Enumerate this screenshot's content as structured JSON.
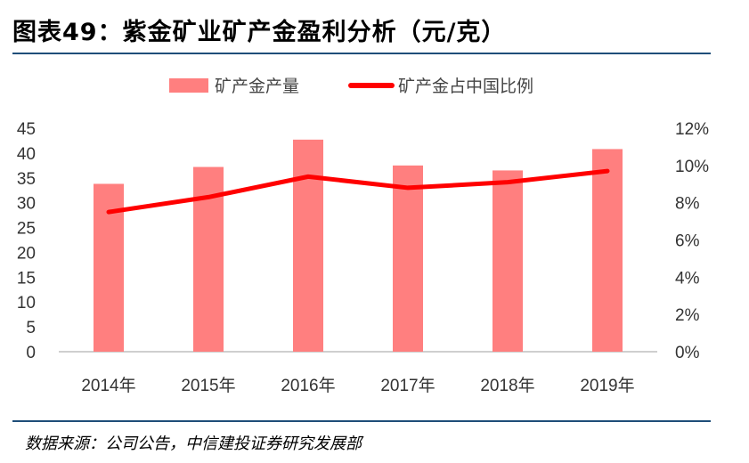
{
  "title": "图表49：紫金矿业矿产金盈利分析（元/克）",
  "source": "数据来源：公司公告，中信建投证券研究发展部",
  "chart_data": {
    "type": "bar",
    "title": "紫金矿业矿产金盈利分析（元/克）",
    "categories": [
      "2014年",
      "2015年",
      "2016年",
      "2017年",
      "2018年",
      "2019年"
    ],
    "series": [
      {
        "name": "矿产金产量",
        "type": "bar",
        "axis": "left",
        "color": "#ff7f7f",
        "values": [
          33.8,
          37.2,
          42.7,
          37.5,
          36.5,
          40.8
        ]
      },
      {
        "name": "矿产金占中国比例",
        "type": "line",
        "axis": "right",
        "color": "#ff0000",
        "values": [
          0.075,
          0.083,
          0.094,
          0.088,
          0.091,
          0.097
        ]
      }
    ],
    "y_left": {
      "min": 0,
      "max": 45,
      "step": 5,
      "ticks": [
        "0",
        "5",
        "10",
        "15",
        "20",
        "25",
        "30",
        "35",
        "40",
        "45"
      ]
    },
    "y_right": {
      "min": 0,
      "max": 0.12,
      "step": 0.02,
      "ticks": [
        "0%",
        "2%",
        "4%",
        "6%",
        "8%",
        "10%",
        "12%"
      ]
    },
    "legend": {
      "placement": "top-center",
      "items": [
        "矿产金产量",
        "矿产金占中国比例"
      ]
    },
    "grid": false
  }
}
